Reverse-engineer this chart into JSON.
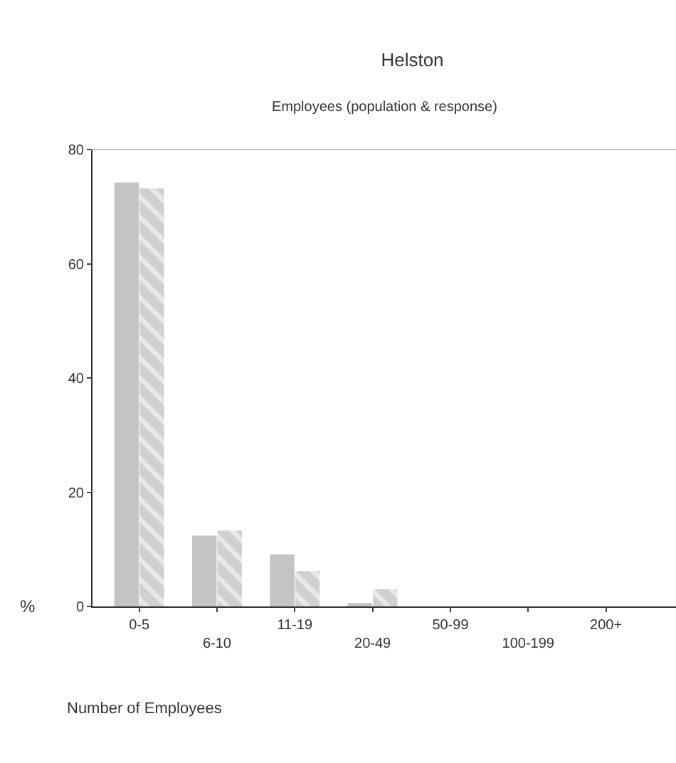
{
  "chart_data": {
    "type": "bar",
    "title": "Helston",
    "subtitle": "Employees (population & response)",
    "ylabel": "%",
    "annotations": [
      "Number of Employees"
    ],
    "categories": [
      "0-5",
      "6-10",
      "11-19",
      "20-49",
      "50-99",
      "100-199",
      "200+"
    ],
    "series": [
      {
        "color": "#c4c4c4",
        "values": [
          74.2,
          12.4,
          9.1,
          0.6,
          0,
          0,
          0
        ]
      },
      {
        "color": "#d0d0d0",
        "values": [
          73.2,
          13.3,
          6.2,
          3.0,
          0,
          0,
          0
        ]
      }
    ],
    "ylim": [
      0,
      80
    ],
    "yticks": [
      0,
      20,
      40,
      60,
      80
    ],
    "legend": false
  }
}
